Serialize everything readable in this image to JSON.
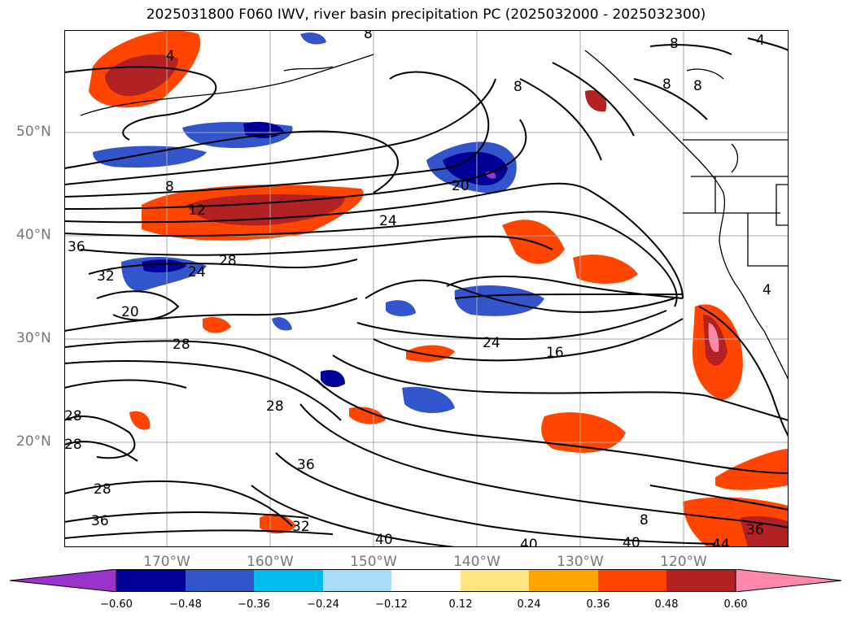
{
  "title": "2025031800 F060 IWV, river basin precipitation PC (2025032000 - 2025032300)",
  "axes": {
    "lat_labels": [
      {
        "label": "50°N",
        "value": 50
      },
      {
        "label": "40°N",
        "value": 40
      },
      {
        "label": "30°N",
        "value": 30
      },
      {
        "label": "20°N",
        "value": 20
      }
    ],
    "lon_labels": [
      {
        "label": "170°W",
        "value": -170
      },
      {
        "label": "160°W",
        "value": -160
      },
      {
        "label": "150°W",
        "value": -150
      },
      {
        "label": "140°W",
        "value": -140
      },
      {
        "label": "130°W",
        "value": -130
      },
      {
        "label": "120°W",
        "value": -120
      }
    ],
    "lon_range": [
      -180,
      -110
    ],
    "lat_range": [
      10,
      60
    ]
  },
  "contour_labels": [
    "4",
    "8",
    "8",
    "8",
    "8",
    "8",
    "8",
    "12",
    "20",
    "24",
    "28",
    "36",
    "32",
    "24",
    "20",
    "28",
    "28",
    "24",
    "16",
    "28",
    "36",
    "28",
    "28",
    "36",
    "32",
    "40",
    "40",
    "40",
    "44",
    "36",
    "4",
    "4",
    "8"
  ],
  "colorbar": {
    "ticks": [
      "−0.60",
      "−0.48",
      "−0.36",
      "−0.24",
      "−0.12",
      "0.12",
      "0.24",
      "0.36",
      "0.48",
      "0.60"
    ],
    "colors": [
      "#9933cc",
      "#000099",
      "#3355cc",
      "#00bbee",
      "#aaddf7",
      "#ffffff",
      "#ffe680",
      "#ffa500",
      "#ff4500",
      "#b22222",
      "#ff88aa",
      "#ff88aa"
    ]
  },
  "colors": {
    "tick_text": "#777777",
    "grid": "#aaaaaa",
    "contour": "#000000"
  }
}
